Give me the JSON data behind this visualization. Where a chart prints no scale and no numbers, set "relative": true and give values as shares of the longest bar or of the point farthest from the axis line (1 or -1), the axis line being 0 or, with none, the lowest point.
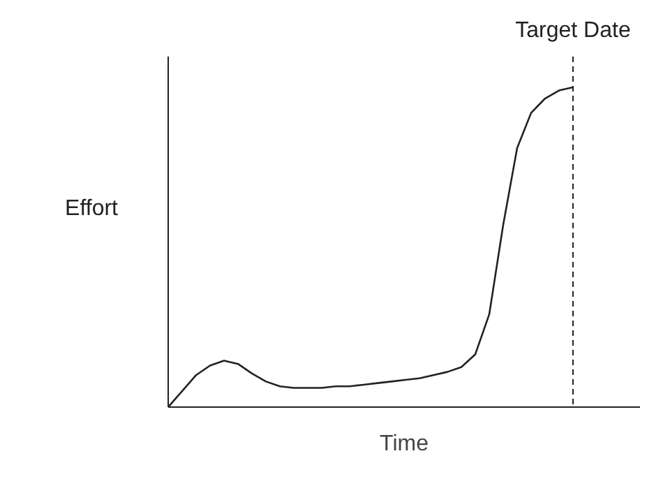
{
  "chart_data": {
    "type": "line",
    "relative": true,
    "xlabel": "Time",
    "ylabel": "Effort",
    "categories": [
      null,
      null,
      null,
      null,
      null,
      null,
      null,
      null,
      null,
      null,
      null,
      null,
      null,
      null,
      null,
      null,
      null,
      null,
      null,
      null,
      null,
      null,
      null,
      null,
      null,
      null,
      null,
      null,
      null,
      null
    ],
    "series": [
      {
        "color": "#222222",
        "values": [
          0,
          0.05,
          0.1,
          0.13,
          0.145,
          0.135,
          0.105,
          0.08,
          0.065,
          0.06,
          0.06,
          0.06,
          0.065,
          0.065,
          0.07,
          0.075,
          0.08,
          0.085,
          0.09,
          0.1,
          0.11,
          0.125,
          0.165,
          0.29,
          0.57,
          0.81,
          0.92,
          0.965,
          0.99,
          1.0
        ]
      }
    ],
    "annotations": [
      "Target Date"
    ],
    "marker": "none",
    "line_style": "solid"
  }
}
